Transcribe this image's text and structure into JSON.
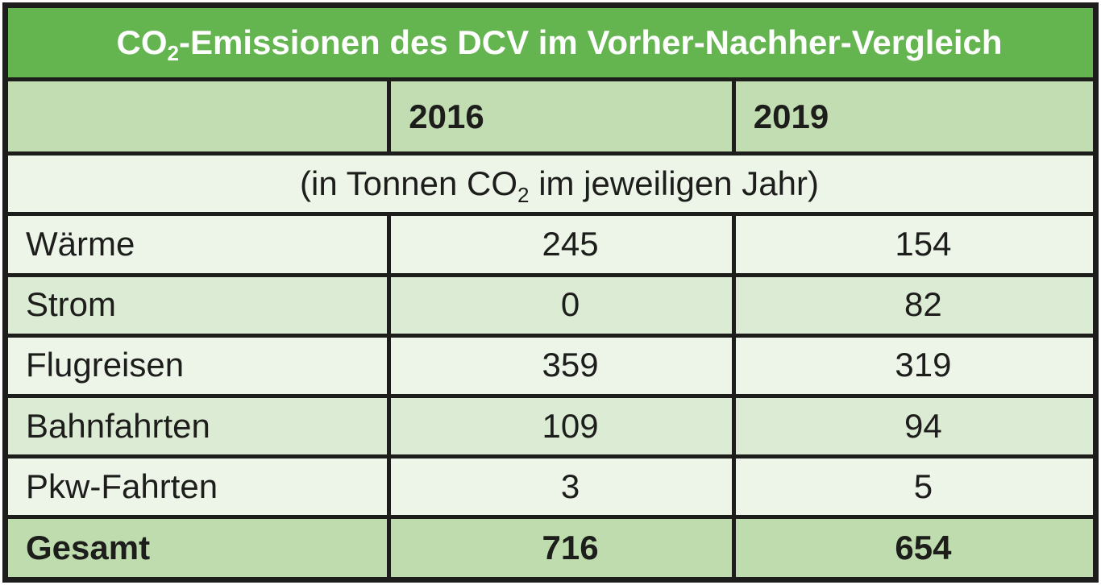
{
  "chart_data": {
    "type": "table",
    "title": "CO2-Emissionen des DCV im Vorher-Nachher-Vergleich",
    "subtitle": "(in Tonnen CO2 im jeweiligen Jahr)",
    "columns": [
      "",
      "2016",
      "2019"
    ],
    "rows": [
      [
        "Wärme",
        245,
        154
      ],
      [
        "Strom",
        0,
        82
      ],
      [
        "Flugreisen",
        359,
        319
      ],
      [
        "Bahnfahrten",
        109,
        94
      ],
      [
        "Pkw-Fahrten",
        3,
        5
      ],
      [
        "Gesamt",
        716,
        654
      ]
    ]
  },
  "title": {
    "prefix": "CO",
    "sub": "2",
    "suffix": "-Emissionen des DCV im Vorher-Nachher-Vergleich"
  },
  "columns": [
    "2016",
    "2019"
  ],
  "unit": {
    "prefix": "(in Tonnen CO",
    "sub": "2",
    "suffix": " im jeweiligen Jahr)"
  },
  "rows": [
    {
      "label": "Wärme",
      "y2016": "245",
      "y2019": "154"
    },
    {
      "label": "Strom",
      "y2016": "0",
      "y2019": "82"
    },
    {
      "label": "Flugreisen",
      "y2016": "359",
      "y2019": "319"
    },
    {
      "label": "Bahnfahrten",
      "y2016": "109",
      "y2019": "94"
    },
    {
      "label": "Pkw-Fahrten",
      "y2016": "3",
      "y2019": "5"
    },
    {
      "label": "Gesamt",
      "y2016": "716",
      "y2019": "654"
    }
  ],
  "colors": {
    "title_bg": "#64b450",
    "band_bg": "#c3ddb3",
    "row_light": "#edf5e9",
    "row_mid": "#dcebd3",
    "total_bg": "#bfdcae",
    "border": "#1d1d1b",
    "text": "#1d1d1b",
    "title_text": "#ffffff"
  }
}
